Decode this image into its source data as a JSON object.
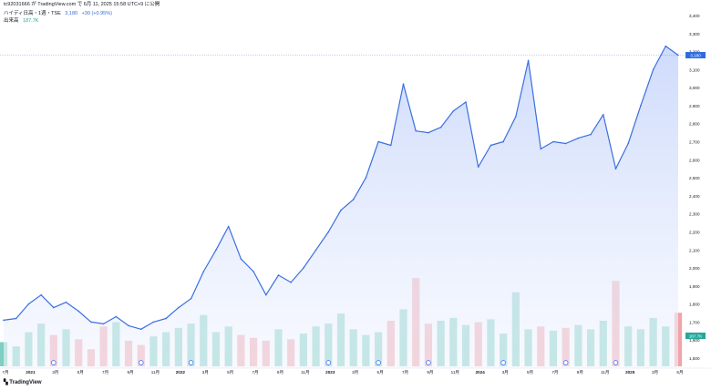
{
  "snapshot_caption": "tc92031666 が TradingView.com で 6月 11, 2025 15:58 UTC+9 に公開",
  "legend": {
    "symbol": "ハイディ日高・1週・TSE",
    "price": "3,180",
    "change": "+30 (+0.95%)",
    "volume_label": "出来高",
    "volume_value": "187.7K"
  },
  "price_tag": "3,180",
  "volume_tag": "187.7K",
  "footer_logo": "TradingView",
  "colors": {
    "line": "#3a6fe0",
    "area_top": "#c9d7fb",
    "area_bottom": "#f3f6fe",
    "vol_up": "#7fcfc2",
    "vol_down": "#f2a3a9",
    "tag": "#2f6bdf",
    "vol_tag": "#26a69a"
  },
  "chart_data": {
    "type": "line",
    "x": [
      "2020-12",
      "2021-01",
      "2021-02",
      "2021-03",
      "2021-04",
      "2021-05",
      "2021-06",
      "2021-07",
      "2021-08",
      "2021-09",
      "2021-10",
      "2021-11",
      "2021-12",
      "2022-01",
      "2022-02",
      "2022-03",
      "2022-04",
      "2022-05",
      "2022-06",
      "2022-07",
      "2022-08",
      "2022-09",
      "2022-10",
      "2022-11",
      "2022-12",
      "2023-01",
      "2023-02",
      "2023-03",
      "2023-04",
      "2023-05",
      "2023-06",
      "2023-07",
      "2023-08",
      "2023-09",
      "2023-10",
      "2023-11",
      "2023-12",
      "2024-01",
      "2024-02",
      "2024-03",
      "2024-04",
      "2024-05",
      "2024-06",
      "2024-07",
      "2024-08",
      "2024-09",
      "2024-10",
      "2024-11",
      "2024-12",
      "2025-01",
      "2025-02",
      "2025-03",
      "2025-04",
      "2025-05",
      "2025-06"
    ],
    "series": [
      {
        "values": [
          1710,
          1720,
          1800,
          1850,
          1780,
          1810,
          1760,
          1700,
          1690,
          1730,
          1680,
          1660,
          1700,
          1720,
          1780,
          1830,
          1980,
          2100,
          2230,
          2050,
          1980,
          1850,
          1960,
          1920,
          2000,
          2100,
          2200,
          2320,
          2380,
          2500,
          2700,
          2680,
          3020,
          2760,
          2750,
          2780,
          2870,
          2920,
          2560,
          2680,
          2700,
          2840,
          3150,
          2660,
          2700,
          2690,
          2720,
          2740,
          2850,
          2550,
          2690,
          2900,
          3100,
          3230,
          3180
        ]
      }
    ],
    "volume": {
      "values": [
        85,
        70,
        120,
        150,
        110,
        130,
        95,
        60,
        140,
        155,
        90,
        75,
        105,
        120,
        135,
        150,
        180,
        120,
        140,
        110,
        100,
        90,
        130,
        95,
        115,
        140,
        150,
        185,
        130,
        110,
        120,
        160,
        200,
        310,
        150,
        160,
        170,
        145,
        155,
        165,
        115,
        260,
        130,
        140,
        125,
        135,
        145,
        130,
        160,
        300,
        140,
        130,
        170,
        140,
        188
      ],
      "unit": "K"
    },
    "y_ticks": [
      "1,500",
      "1,600",
      "1,700",
      "1,800",
      "1,900",
      "2,000",
      "2,100",
      "2,200",
      "2,300",
      "2,400",
      "2,500",
      "2,600",
      "2,700",
      "2,800",
      "2,900",
      "3,000",
      "3,100",
      "3,200",
      "3,300",
      "3,400"
    ],
    "ylim": [
      1500,
      3400
    ],
    "x_ticks": [
      "7月",
      "2021",
      "3月",
      "5月",
      "7月",
      "9月",
      "11月",
      "2022",
      "3月",
      "5月",
      "7月",
      "9月",
      "11月",
      "2023",
      "3月",
      "5月",
      "7月",
      "9月",
      "11月",
      "2024",
      "3月",
      "5月",
      "7月",
      "9月",
      "11月",
      "2025",
      "3月",
      "5月"
    ],
    "bold_ticks": [
      "2021",
      "2022",
      "2023",
      "2024",
      "2025"
    ]
  }
}
